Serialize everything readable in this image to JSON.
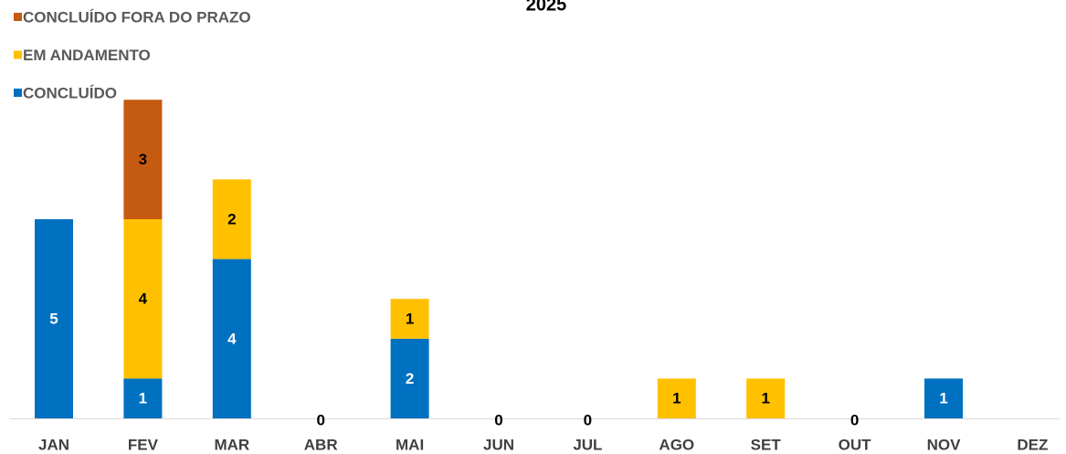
{
  "chart_data": {
    "type": "stacked_bar",
    "title": "2025",
    "categories": [
      "JAN",
      "FEV",
      "MAR",
      "ABR",
      "MAI",
      "JUN",
      "JUL",
      "AGO",
      "SET",
      "OUT",
      "NOV",
      "DEZ"
    ],
    "series": [
      {
        "name": "CONCLUÍDO",
        "color": "#0070c0",
        "label_color": "#ffffff",
        "values": [
          5,
          1,
          4,
          0,
          2,
          0,
          0,
          null,
          null,
          0,
          1,
          null
        ]
      },
      {
        "name": "EM ANDAMENTO",
        "color": "#ffc000",
        "label_color": "#000000",
        "values": [
          null,
          4,
          2,
          null,
          1,
          null,
          null,
          1,
          1,
          null,
          null,
          null
        ]
      },
      {
        "name": "CONCLUÍDO FORA DO PRAZO",
        "color": "#c55a11",
        "label_color": "#000000",
        "values": [
          null,
          3,
          null,
          null,
          null,
          null,
          null,
          null,
          null,
          null,
          null,
          null
        ]
      }
    ],
    "legend": "top-left"
  }
}
